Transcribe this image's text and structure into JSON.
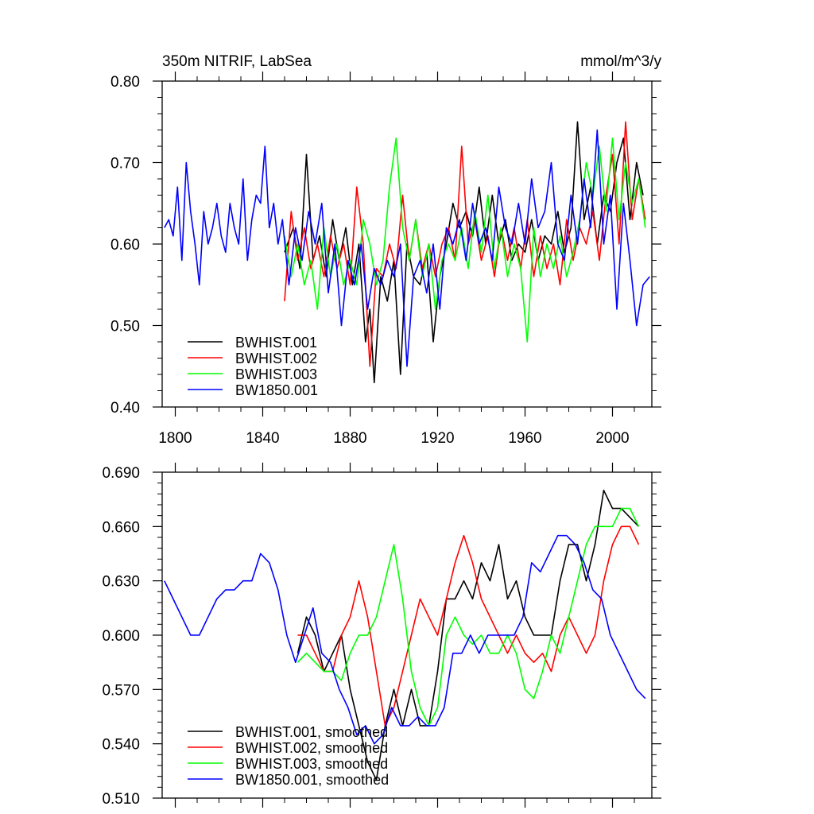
{
  "chart_data": [
    {
      "type": "line",
      "title": "350m NITRIF, LabSea",
      "units": "mmol/m^3/y",
      "xlim": [
        1794,
        2018
      ],
      "ylim": [
        0.4,
        0.8
      ],
      "x_ticks": [
        1800,
        1840,
        1880,
        1920,
        1960,
        2000
      ],
      "x_tick_labels": [
        "1800",
        "1840",
        "1880",
        "1920",
        "1960",
        "2000"
      ],
      "y_ticks": [
        0.4,
        0.5,
        0.6,
        0.7,
        0.8
      ],
      "y_tick_labels": [
        "0.40",
        "0.50",
        "0.60",
        "0.70",
        "0.80"
      ],
      "grid": false,
      "legend_position": "bottom-left",
      "series": [
        {
          "name": "BWHIST.001",
          "color": "#000000",
          "x": [
            1850,
            1854,
            1857,
            1860,
            1863,
            1866,
            1869,
            1872,
            1875,
            1878,
            1881,
            1884,
            1887,
            1889,
            1891,
            1894,
            1897,
            1900,
            1903,
            1906,
            1909,
            1912,
            1915,
            1918,
            1921,
            1924,
            1927,
            1930,
            1933,
            1936,
            1939,
            1942,
            1945,
            1948,
            1951,
            1954,
            1957,
            1960,
            1963,
            1966,
            1969,
            1972,
            1975,
            1978,
            1981,
            1984,
            1987,
            1990,
            1993,
            1996,
            1999,
            2002,
            2005,
            2008,
            2011,
            2014
          ],
          "y": [
            0.59,
            0.62,
            0.57,
            0.71,
            0.58,
            0.61,
            0.56,
            0.63,
            0.58,
            0.62,
            0.55,
            0.6,
            0.48,
            0.52,
            0.43,
            0.56,
            0.53,
            0.58,
            0.44,
            0.6,
            0.56,
            0.55,
            0.59,
            0.48,
            0.56,
            0.6,
            0.65,
            0.62,
            0.64,
            0.61,
            0.67,
            0.6,
            0.66,
            0.6,
            0.63,
            0.58,
            0.6,
            0.59,
            0.63,
            0.58,
            0.61,
            0.6,
            0.64,
            0.59,
            0.62,
            0.75,
            0.63,
            0.67,
            0.6,
            0.66,
            0.64,
            0.7,
            0.73,
            0.63,
            0.7,
            0.66
          ]
        },
        {
          "name": "BWHIST.002",
          "color": "#ff0000",
          "x": [
            1850,
            1853,
            1856,
            1859,
            1862,
            1865,
            1868,
            1871,
            1874,
            1877,
            1880,
            1883,
            1886,
            1889,
            1892,
            1895,
            1898,
            1901,
            1904,
            1907,
            1910,
            1913,
            1916,
            1919,
            1922,
            1925,
            1928,
            1931,
            1934,
            1937,
            1940,
            1943,
            1946,
            1949,
            1952,
            1955,
            1958,
            1961,
            1964,
            1967,
            1970,
            1973,
            1976,
            1979,
            1982,
            1985,
            1988,
            1991,
            1994,
            1997,
            2000,
            2003,
            2006,
            2009,
            2012,
            2015
          ],
          "y": [
            0.53,
            0.64,
            0.58,
            0.62,
            0.57,
            0.6,
            0.56,
            0.61,
            0.57,
            0.6,
            0.55,
            0.67,
            0.6,
            0.45,
            0.57,
            0.56,
            0.6,
            0.57,
            0.66,
            0.58,
            0.63,
            0.57,
            0.6,
            0.56,
            0.6,
            0.62,
            0.58,
            0.72,
            0.6,
            0.63,
            0.58,
            0.61,
            0.56,
            0.62,
            0.58,
            0.62,
            0.57,
            0.63,
            0.56,
            0.61,
            0.57,
            0.6,
            0.55,
            0.63,
            0.58,
            0.62,
            0.6,
            0.64,
            0.58,
            0.66,
            0.71,
            0.6,
            0.75,
            0.63,
            0.68,
            0.63
          ]
        },
        {
          "name": "BWHIST.003",
          "color": "#00ff00",
          "x": [
            1850,
            1853,
            1856,
            1859,
            1862,
            1865,
            1868,
            1871,
            1874,
            1877,
            1880,
            1883,
            1886,
            1889,
            1892,
            1895,
            1898,
            1901,
            1904,
            1907,
            1910,
            1913,
            1916,
            1919,
            1922,
            1925,
            1928,
            1931,
            1934,
            1937,
            1940,
            1943,
            1946,
            1949,
            1952,
            1955,
            1958,
            1961,
            1964,
            1967,
            1970,
            1973,
            1976,
            1979,
            1982,
            1985,
            1988,
            1991,
            1994,
            1997,
            2000,
            2003,
            2006,
            2009,
            2012,
            2015
          ],
          "y": [
            0.61,
            0.56,
            0.6,
            0.55,
            0.58,
            0.52,
            0.62,
            0.56,
            0.6,
            0.55,
            0.58,
            0.55,
            0.63,
            0.6,
            0.55,
            0.58,
            0.67,
            0.73,
            0.62,
            0.58,
            0.63,
            0.56,
            0.6,
            0.52,
            0.58,
            0.6,
            0.58,
            0.62,
            0.57,
            0.64,
            0.59,
            0.66,
            0.57,
            0.62,
            0.56,
            0.6,
            0.57,
            0.48,
            0.62,
            0.56,
            0.6,
            0.57,
            0.61,
            0.56,
            0.59,
            0.63,
            0.7,
            0.66,
            0.72,
            0.64,
            0.73,
            0.63,
            0.7,
            0.65,
            0.68,
            0.62
          ]
        },
        {
          "name": "BW1850.001",
          "color": "#0000ff",
          "x": [
            1795,
            1797,
            1799,
            1801,
            1803,
            1805,
            1807,
            1809,
            1811,
            1813,
            1815,
            1817,
            1819,
            1821,
            1823,
            1825,
            1827,
            1829,
            1831,
            1833,
            1835,
            1837,
            1839,
            1841,
            1843,
            1845,
            1847,
            1849,
            1852,
            1855,
            1858,
            1861,
            1864,
            1867,
            1870,
            1873,
            1876,
            1879,
            1882,
            1885,
            1888,
            1891,
            1894,
            1897,
            1900,
            1903,
            1906,
            1909,
            1912,
            1915,
            1918,
            1921,
            1924,
            1927,
            1930,
            1933,
            1936,
            1939,
            1942,
            1945,
            1948,
            1951,
            1954,
            1957,
            1960,
            1963,
            1966,
            1969,
            1972,
            1975,
            1978,
            1981,
            1984,
            1987,
            1990,
            1993,
            1996,
            1999,
            2002,
            2005,
            2008,
            2011,
            2014,
            2017
          ],
          "y": [
            0.62,
            0.63,
            0.61,
            0.67,
            0.58,
            0.7,
            0.64,
            0.6,
            0.55,
            0.64,
            0.6,
            0.62,
            0.65,
            0.61,
            0.59,
            0.65,
            0.62,
            0.6,
            0.68,
            0.58,
            0.63,
            0.66,
            0.65,
            0.72,
            0.62,
            0.65,
            0.6,
            0.63,
            0.55,
            0.62,
            0.58,
            0.64,
            0.6,
            0.65,
            0.54,
            0.6,
            0.5,
            0.58,
            0.55,
            0.6,
            0.52,
            0.57,
            0.55,
            0.58,
            0.56,
            0.6,
            0.45,
            0.56,
            0.58,
            0.54,
            0.6,
            0.52,
            0.62,
            0.6,
            0.63,
            0.58,
            0.65,
            0.6,
            0.62,
            0.58,
            0.67,
            0.62,
            0.6,
            0.65,
            0.6,
            0.68,
            0.62,
            0.64,
            0.7,
            0.6,
            0.58,
            0.66,
            0.6,
            0.68,
            0.62,
            0.74,
            0.6,
            0.66,
            0.52,
            0.65,
            0.58,
            0.5,
            0.55,
            0.56
          ]
        }
      ]
    },
    {
      "type": "line",
      "xlim": [
        1794,
        2018
      ],
      "ylim": [
        0.51,
        0.69
      ],
      "x_ticks": [
        1800,
        1840,
        1880,
        1920,
        1960,
        2000
      ],
      "y_ticks": [
        0.51,
        0.54,
        0.57,
        0.6,
        0.63,
        0.66,
        0.69
      ],
      "y_tick_labels": [
        "0.510",
        "0.540",
        "0.570",
        "0.600",
        "0.630",
        "0.660",
        "0.690"
      ],
      "grid": false,
      "legend_position": "bottom-left",
      "series": [
        {
          "name": "BWHIST.001, smoothed",
          "color": "#000000",
          "x": [
            1856,
            1860,
            1864,
            1868,
            1872,
            1876,
            1880,
            1884,
            1888,
            1892,
            1896,
            1900,
            1904,
            1908,
            1912,
            1916,
            1920,
            1924,
            1928,
            1932,
            1936,
            1940,
            1944,
            1948,
            1952,
            1956,
            1960,
            1964,
            1968,
            1972,
            1976,
            1980,
            1984,
            1988,
            1992,
            1996,
            2000,
            2004,
            2008,
            2012
          ],
          "y": [
            0.59,
            0.61,
            0.6,
            0.58,
            0.59,
            0.6,
            0.57,
            0.55,
            0.53,
            0.52,
            0.55,
            0.57,
            0.55,
            0.57,
            0.55,
            0.55,
            0.58,
            0.62,
            0.62,
            0.63,
            0.62,
            0.64,
            0.63,
            0.65,
            0.62,
            0.63,
            0.61,
            0.6,
            0.6,
            0.6,
            0.63,
            0.65,
            0.65,
            0.63,
            0.65,
            0.68,
            0.67,
            0.67,
            0.665,
            0.66
          ]
        },
        {
          "name": "BWHIST.002, smoothed",
          "color": "#ff0000",
          "x": [
            1856,
            1860,
            1864,
            1868,
            1872,
            1876,
            1880,
            1884,
            1888,
            1892,
            1896,
            1900,
            1904,
            1908,
            1912,
            1916,
            1920,
            1924,
            1928,
            1932,
            1936,
            1940,
            1944,
            1948,
            1952,
            1956,
            1960,
            1964,
            1968,
            1972,
            1976,
            1980,
            1984,
            1988,
            1992,
            1996,
            2000,
            2004,
            2008,
            2012
          ],
          "y": [
            0.6,
            0.6,
            0.59,
            0.58,
            0.58,
            0.6,
            0.61,
            0.63,
            0.61,
            0.58,
            0.55,
            0.56,
            0.58,
            0.6,
            0.62,
            0.61,
            0.6,
            0.62,
            0.64,
            0.655,
            0.64,
            0.62,
            0.61,
            0.6,
            0.59,
            0.6,
            0.59,
            0.585,
            0.59,
            0.58,
            0.6,
            0.61,
            0.6,
            0.59,
            0.6,
            0.63,
            0.65,
            0.66,
            0.66,
            0.65
          ]
        },
        {
          "name": "BWHIST.003, smoothed",
          "color": "#00ff00",
          "x": [
            1856,
            1860,
            1864,
            1868,
            1872,
            1876,
            1880,
            1884,
            1888,
            1892,
            1896,
            1900,
            1904,
            1908,
            1912,
            1916,
            1920,
            1924,
            1928,
            1932,
            1936,
            1940,
            1944,
            1948,
            1952,
            1956,
            1960,
            1964,
            1968,
            1972,
            1976,
            1980,
            1984,
            1988,
            1992,
            1996,
            2000,
            2004,
            2008,
            2012
          ],
          "y": [
            0.585,
            0.59,
            0.585,
            0.58,
            0.58,
            0.575,
            0.59,
            0.6,
            0.6,
            0.61,
            0.63,
            0.65,
            0.62,
            0.58,
            0.56,
            0.55,
            0.56,
            0.6,
            0.61,
            0.6,
            0.595,
            0.6,
            0.59,
            0.59,
            0.6,
            0.59,
            0.57,
            0.565,
            0.58,
            0.6,
            0.59,
            0.61,
            0.63,
            0.65,
            0.66,
            0.66,
            0.66,
            0.67,
            0.67,
            0.66
          ]
        },
        {
          "name": "BW1850.001, smoothed",
          "color": "#0000ff",
          "x": [
            1795,
            1799,
            1803,
            1807,
            1811,
            1815,
            1819,
            1823,
            1827,
            1831,
            1835,
            1839,
            1843,
            1847,
            1851,
            1855,
            1859,
            1863,
            1867,
            1871,
            1875,
            1879,
            1883,
            1887,
            1891,
            1895,
            1899,
            1903,
            1907,
            1911,
            1915,
            1919,
            1923,
            1927,
            1931,
            1935,
            1939,
            1943,
            1947,
            1951,
            1955,
            1959,
            1963,
            1967,
            1971,
            1975,
            1979,
            1983,
            1987,
            1991,
            1995,
            1999,
            2003,
            2007,
            2011,
            2015
          ],
          "y": [
            0.63,
            0.62,
            0.61,
            0.6,
            0.6,
            0.61,
            0.62,
            0.625,
            0.625,
            0.63,
            0.63,
            0.645,
            0.64,
            0.625,
            0.6,
            0.585,
            0.6,
            0.615,
            0.59,
            0.585,
            0.57,
            0.56,
            0.545,
            0.55,
            0.54,
            0.545,
            0.56,
            0.55,
            0.55,
            0.555,
            0.55,
            0.55,
            0.56,
            0.59,
            0.59,
            0.6,
            0.59,
            0.6,
            0.6,
            0.6,
            0.6,
            0.61,
            0.64,
            0.635,
            0.645,
            0.655,
            0.655,
            0.65,
            0.64,
            0.625,
            0.62,
            0.6,
            0.59,
            0.58,
            0.57,
            0.565
          ]
        }
      ]
    }
  ]
}
